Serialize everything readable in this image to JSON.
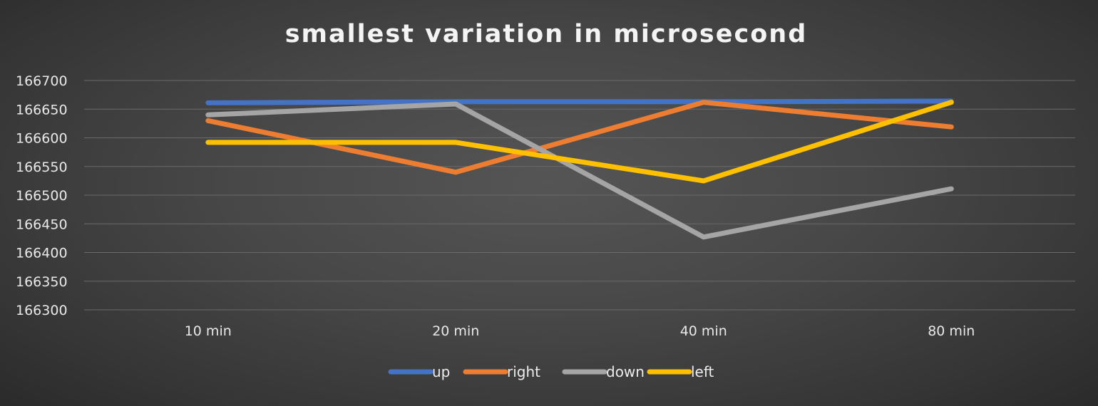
{
  "chart_data": {
    "type": "line",
    "title": "smallest variation in microsecond",
    "categories": [
      "10 min",
      "20 min",
      "40 min",
      "80 min"
    ],
    "ylim": [
      166300,
      166700
    ],
    "yticks": [
      "166700",
      "166650",
      "166600",
      "166550",
      "166500",
      "166450",
      "166400",
      "166350",
      "166300"
    ],
    "grid": true,
    "legend": "bottom-center",
    "series": [
      {
        "name": "up",
        "color": "#4472c4",
        "values": [
          166661,
          166663,
          166663,
          166664
        ]
      },
      {
        "name": "right",
        "color": "#ed7d31",
        "values": [
          166630,
          166540,
          166662,
          166619
        ]
      },
      {
        "name": "down",
        "color": "#a5a5a5",
        "values": [
          166640,
          166659,
          166427,
          166511
        ]
      },
      {
        "name": "left",
        "color": "#ffc000",
        "values": [
          166592,
          166592,
          166525,
          166662
        ]
      }
    ]
  }
}
